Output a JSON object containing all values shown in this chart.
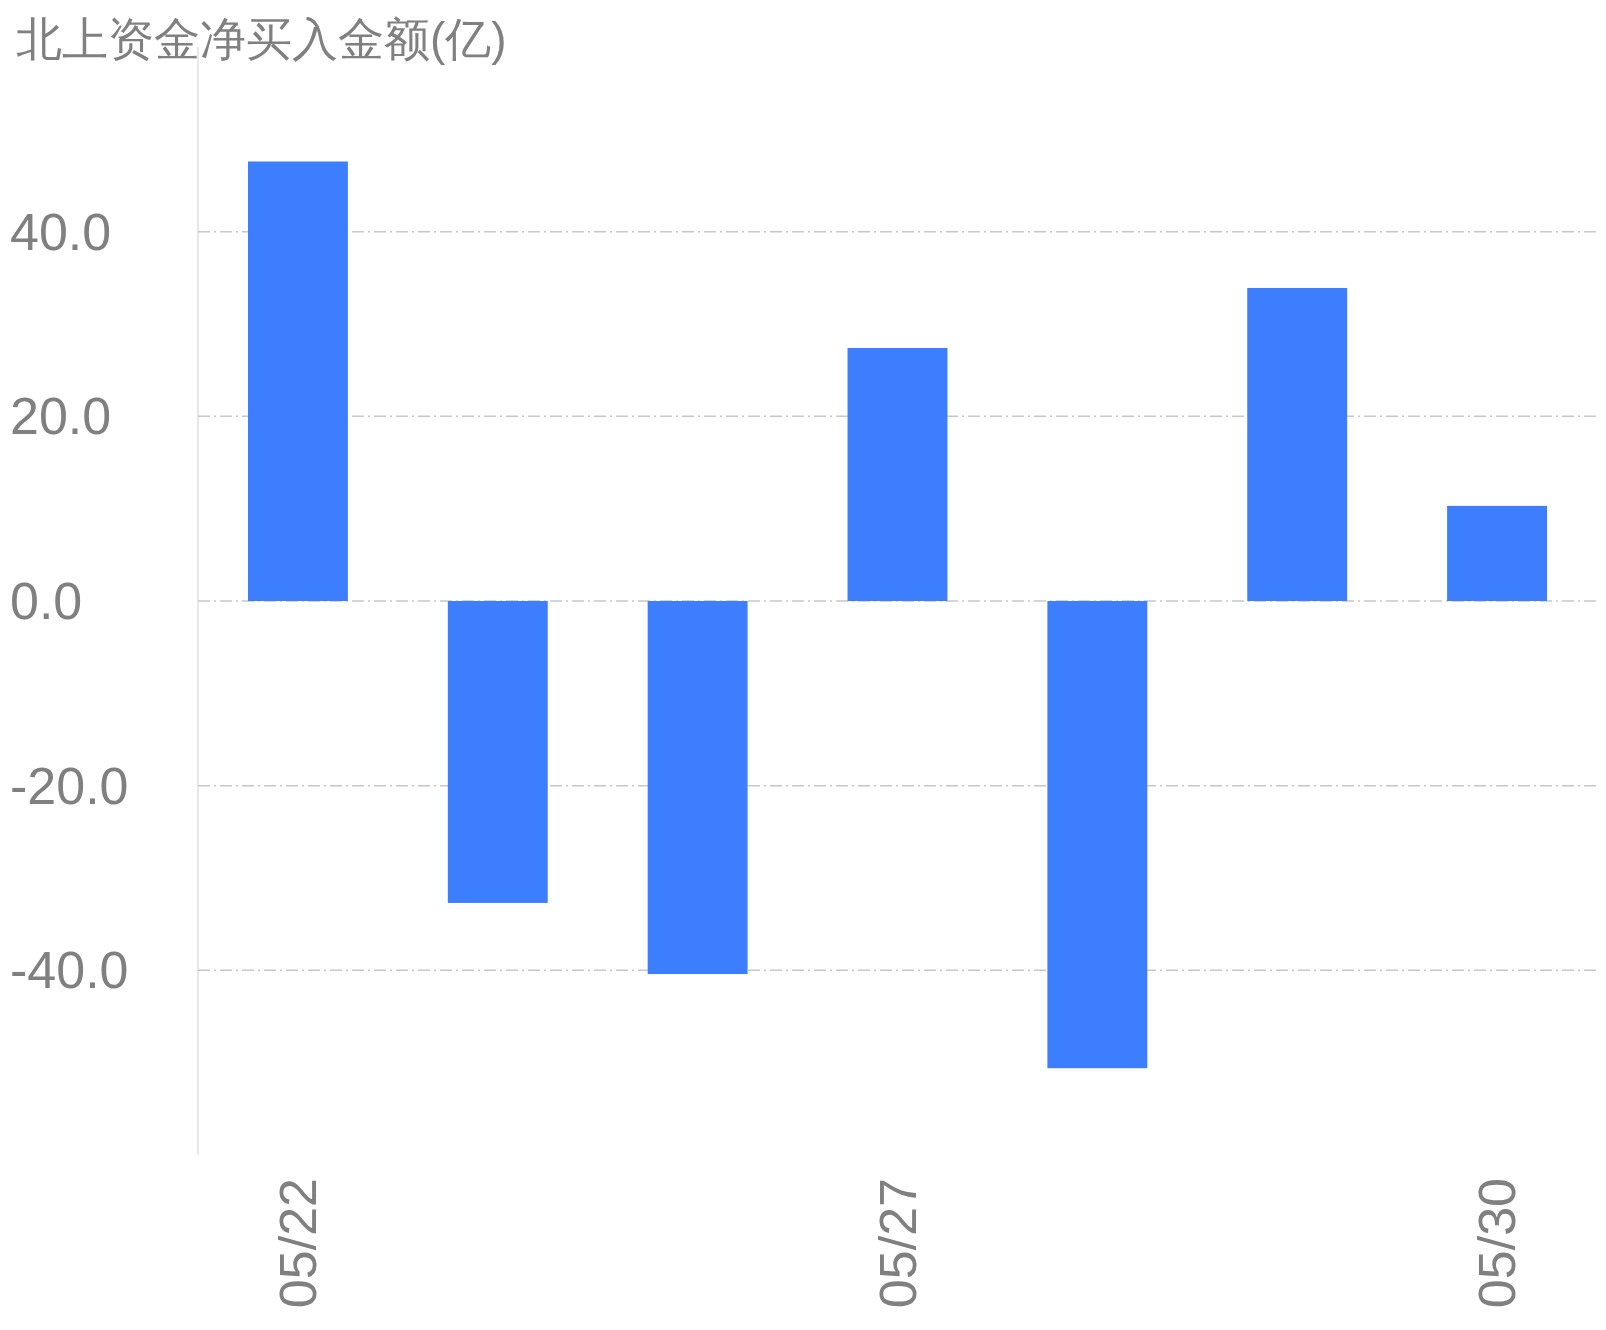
{
  "chart_data": {
    "type": "bar",
    "title": "北上资金净买入金额(亿)",
    "categories": [
      "05/22",
      null,
      null,
      "05/27",
      null,
      null,
      "05/30"
    ],
    "values": [
      47.6,
      -32.7,
      -40.4,
      27.4,
      -50.6,
      33.9,
      10.3
    ],
    "color": "#3d7eff",
    "ylim": [
      -60,
      60
    ],
    "yticks": [
      {
        "value": -40,
        "label": "-40.0"
      },
      {
        "value": -20,
        "label": "-20.0"
      },
      {
        "value": 0,
        "label": "0.0"
      },
      {
        "value": 20,
        "label": "20.0"
      },
      {
        "value": 40,
        "label": "40.0"
      }
    ],
    "grid": "y"
  }
}
